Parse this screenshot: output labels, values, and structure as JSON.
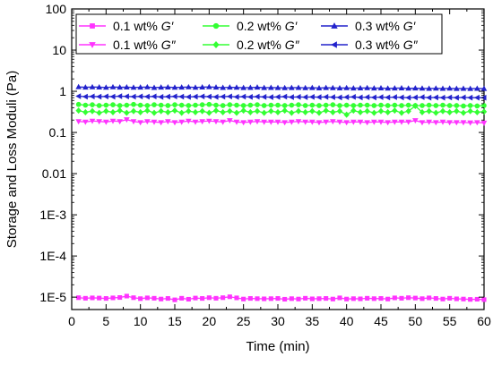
{
  "chart_data": {
    "type": "line",
    "xlabel": "Time (min)",
    "ylabel": "Storage and Loss Moduli (Pa)",
    "xlim": [
      0,
      60
    ],
    "ylim": [
      5e-06,
      100
    ],
    "yscale": "log",
    "x_ticks": [
      "0",
      "5",
      "10",
      "15",
      "20",
      "25",
      "30",
      "35",
      "40",
      "45",
      "50",
      "55",
      "60"
    ],
    "y_ticks": [
      {
        "value": 100,
        "label": "100"
      },
      {
        "value": 10,
        "label": "10"
      },
      {
        "value": 1,
        "label": "1"
      },
      {
        "value": 0.1,
        "label": "0.1"
      },
      {
        "value": 0.01,
        "label": "0.01"
      },
      {
        "value": 0.001,
        "label": "1E-3"
      },
      {
        "value": 0.0001,
        "label": "1E-4"
      },
      {
        "value": 1e-05,
        "label": "1E-5"
      }
    ],
    "grid": false,
    "legend_position": "top",
    "series": [
      {
        "name_prefix": "0.1 wt%",
        "name_symbol": "G′",
        "name": "0.1 wt% G′",
        "color": "#ff33ff",
        "marker": "square",
        "x": [
          1,
          2,
          3,
          4,
          5,
          6,
          7,
          8,
          9,
          10,
          11,
          12,
          13,
          14,
          15,
          16,
          17,
          18,
          19,
          20,
          21,
          22,
          23,
          24,
          25,
          26,
          27,
          28,
          29,
          30,
          31,
          32,
          33,
          34,
          35,
          36,
          37,
          38,
          39,
          40,
          41,
          42,
          43,
          44,
          45,
          46,
          47,
          48,
          49,
          50,
          51,
          52,
          53,
          54,
          55,
          56,
          57,
          58,
          59,
          60
        ],
        "y": [
          9.7e-06,
          9.4e-06,
          9.6e-06,
          9.5e-06,
          9.3e-06,
          9.6e-06,
          9.8e-06,
          1.06e-05,
          9.7e-06,
          9.2e-06,
          9.6e-06,
          9.4e-06,
          9e-06,
          9.3e-06,
          8.6e-06,
          9.4e-06,
          8.9e-06,
          9.5e-06,
          9.3e-06,
          9.7e-06,
          9.4e-06,
          9.7e-06,
          1.02e-05,
          9.6e-06,
          9e-06,
          9.3e-06,
          9.2e-06,
          9.1e-06,
          9.2e-06,
          9.3e-06,
          8.9e-06,
          9.2e-06,
          9e-06,
          9.4e-06,
          9.1e-06,
          9.2e-06,
          9.3e-06,
          9e-06,
          9.6e-06,
          9e-06,
          9.2e-06,
          9.1e-06,
          9.4e-06,
          9.2e-06,
          9.3e-06,
          9e-06,
          9.6e-06,
          9.4e-06,
          9.7e-06,
          9.5e-06,
          9.2e-06,
          9.6e-06,
          9.3e-06,
          9e-06,
          9.4e-06,
          9.1e-06,
          9e-06,
          8.8e-06,
          8.9e-06,
          8.7e-06
        ]
      },
      {
        "name_prefix": "0.2 wt%",
        "name_symbol": "G′",
        "name": "0.2 wt% G′",
        "color": "#33ff33",
        "marker": "circle",
        "x": [
          1,
          2,
          3,
          4,
          5,
          6,
          7,
          8,
          9,
          10,
          11,
          12,
          13,
          14,
          15,
          16,
          17,
          18,
          19,
          20,
          21,
          22,
          23,
          24,
          25,
          26,
          27,
          28,
          29,
          30,
          31,
          32,
          33,
          34,
          35,
          36,
          37,
          38,
          39,
          40,
          41,
          42,
          43,
          44,
          45,
          46,
          47,
          48,
          49,
          50,
          51,
          52,
          53,
          54,
          55,
          56,
          57,
          58,
          59,
          60
        ],
        "y": [
          0.48,
          0.46,
          0.47,
          0.45,
          0.46,
          0.47,
          0.45,
          0.46,
          0.48,
          0.46,
          0.45,
          0.47,
          0.46,
          0.45,
          0.47,
          0.46,
          0.45,
          0.46,
          0.47,
          0.48,
          0.46,
          0.45,
          0.47,
          0.46,
          0.45,
          0.46,
          0.47,
          0.45,
          0.46,
          0.46,
          0.45,
          0.46,
          0.47,
          0.45,
          0.46,
          0.45,
          0.46,
          0.47,
          0.45,
          0.46,
          0.45,
          0.46,
          0.46,
          0.45,
          0.46,
          0.45,
          0.46,
          0.45,
          0.46,
          0.45,
          0.45,
          0.46,
          0.45,
          0.46,
          0.45,
          0.45,
          0.44,
          0.45,
          0.44,
          0.45
        ]
      },
      {
        "name_prefix": "0.3 wt%",
        "name_symbol": "G′",
        "name": "0.3 wt% G′",
        "color": "#2222cc",
        "marker": "triangle-up",
        "x": [
          1,
          2,
          3,
          4,
          5,
          6,
          7,
          8,
          9,
          10,
          11,
          12,
          13,
          14,
          15,
          16,
          17,
          18,
          19,
          20,
          21,
          22,
          23,
          24,
          25,
          26,
          27,
          28,
          29,
          30,
          31,
          32,
          33,
          34,
          35,
          36,
          37,
          38,
          39,
          40,
          41,
          42,
          43,
          44,
          45,
          46,
          47,
          48,
          49,
          50,
          51,
          52,
          53,
          54,
          55,
          56,
          57,
          58,
          59,
          60
        ],
        "y": [
          1.28,
          1.25,
          1.27,
          1.26,
          1.24,
          1.27,
          1.25,
          1.26,
          1.24,
          1.25,
          1.27,
          1.23,
          1.25,
          1.26,
          1.24,
          1.25,
          1.27,
          1.24,
          1.26,
          1.28,
          1.25,
          1.23,
          1.25,
          1.24,
          1.22,
          1.23,
          1.25,
          1.22,
          1.23,
          1.22,
          1.21,
          1.22,
          1.23,
          1.21,
          1.22,
          1.2,
          1.22,
          1.21,
          1.2,
          1.21,
          1.19,
          1.2,
          1.21,
          1.19,
          1.2,
          1.18,
          1.19,
          1.2,
          1.18,
          1.19,
          1.18,
          1.17,
          1.18,
          1.17,
          1.18,
          1.16,
          1.17,
          1.16,
          1.17,
          1.16
        ]
      },
      {
        "name_prefix": "0.1 wt%",
        "name_symbol": "G″",
        "name": "0.1 wt% G″",
        "color": "#ff33ff",
        "marker": "triangle-down",
        "x": [
          1,
          2,
          3,
          4,
          5,
          6,
          7,
          8,
          9,
          10,
          11,
          12,
          13,
          14,
          15,
          16,
          17,
          18,
          19,
          20,
          21,
          22,
          23,
          24,
          25,
          26,
          27,
          28,
          29,
          30,
          31,
          32,
          33,
          34,
          35,
          36,
          37,
          38,
          39,
          40,
          41,
          42,
          43,
          44,
          45,
          46,
          47,
          48,
          49,
          50,
          51,
          52,
          53,
          54,
          55,
          56,
          57,
          58,
          59,
          60
        ],
        "y": [
          0.185,
          0.18,
          0.19,
          0.185,
          0.18,
          0.19,
          0.185,
          0.205,
          0.185,
          0.175,
          0.185,
          0.18,
          0.175,
          0.185,
          0.175,
          0.18,
          0.19,
          0.18,
          0.185,
          0.19,
          0.185,
          0.18,
          0.195,
          0.18,
          0.175,
          0.18,
          0.185,
          0.18,
          0.18,
          0.18,
          0.175,
          0.18,
          0.185,
          0.18,
          0.18,
          0.175,
          0.18,
          0.185,
          0.18,
          0.175,
          0.18,
          0.18,
          0.175,
          0.18,
          0.18,
          0.175,
          0.18,
          0.18,
          0.18,
          0.195,
          0.175,
          0.18,
          0.175,
          0.18,
          0.175,
          0.175,
          0.175,
          0.172,
          0.175,
          0.17
        ]
      },
      {
        "name_prefix": "0.2 wt%",
        "name_symbol": "G″",
        "name": "0.2 wt% G″",
        "color": "#33ff33",
        "marker": "diamond",
        "x": [
          1,
          2,
          3,
          4,
          5,
          6,
          7,
          8,
          9,
          10,
          11,
          12,
          13,
          14,
          15,
          16,
          17,
          18,
          19,
          20,
          21,
          22,
          23,
          24,
          25,
          26,
          27,
          28,
          29,
          30,
          31,
          32,
          33,
          34,
          35,
          36,
          37,
          38,
          39,
          40,
          41,
          42,
          43,
          44,
          45,
          46,
          47,
          48,
          49,
          50,
          51,
          52,
          53,
          54,
          55,
          56,
          57,
          58,
          59,
          60
        ],
        "y": [
          0.34,
          0.31,
          0.33,
          0.3,
          0.33,
          0.31,
          0.34,
          0.3,
          0.33,
          0.31,
          0.34,
          0.3,
          0.33,
          0.31,
          0.34,
          0.3,
          0.33,
          0.31,
          0.33,
          0.3,
          0.34,
          0.31,
          0.33,
          0.3,
          0.34,
          0.31,
          0.33,
          0.3,
          0.33,
          0.31,
          0.34,
          0.3,
          0.33,
          0.31,
          0.33,
          0.3,
          0.34,
          0.31,
          0.33,
          0.27,
          0.34,
          0.31,
          0.33,
          0.3,
          0.33,
          0.31,
          0.34,
          0.3,
          0.33,
          0.44,
          0.31,
          0.33,
          0.3,
          0.33,
          0.31,
          0.33,
          0.3,
          0.33,
          0.31,
          0.32
        ]
      },
      {
        "name_prefix": "0.3 wt%",
        "name_symbol": "G″",
        "name": "0.3 wt% G″",
        "color": "#2222cc",
        "marker": "triangle-left",
        "x": [
          1,
          2,
          3,
          4,
          5,
          6,
          7,
          8,
          9,
          10,
          11,
          12,
          13,
          14,
          15,
          16,
          17,
          18,
          19,
          20,
          21,
          22,
          23,
          24,
          25,
          26,
          27,
          28,
          29,
          30,
          31,
          32,
          33,
          34,
          35,
          36,
          37,
          38,
          39,
          40,
          41,
          42,
          43,
          44,
          45,
          46,
          47,
          48,
          49,
          50,
          51,
          52,
          53,
          54,
          55,
          56,
          57,
          58,
          59,
          60
        ],
        "y": [
          0.76,
          0.74,
          0.75,
          0.74,
          0.75,
          0.74,
          0.76,
          0.75,
          0.74,
          0.75,
          0.74,
          0.75,
          0.73,
          0.74,
          0.75,
          0.74,
          0.73,
          0.74,
          0.75,
          0.74,
          0.73,
          0.74,
          0.75,
          0.73,
          0.74,
          0.73,
          0.74,
          0.73,
          0.72,
          0.73,
          0.74,
          0.72,
          0.73,
          0.72,
          0.73,
          0.72,
          0.73,
          0.72,
          0.71,
          0.72,
          0.73,
          0.71,
          0.72,
          0.71,
          0.72,
          0.71,
          0.72,
          0.71,
          0.7,
          0.71,
          0.72,
          0.7,
          0.71,
          0.7,
          0.71,
          0.7,
          0.71,
          0.7,
          0.7,
          0.7
        ]
      }
    ]
  }
}
